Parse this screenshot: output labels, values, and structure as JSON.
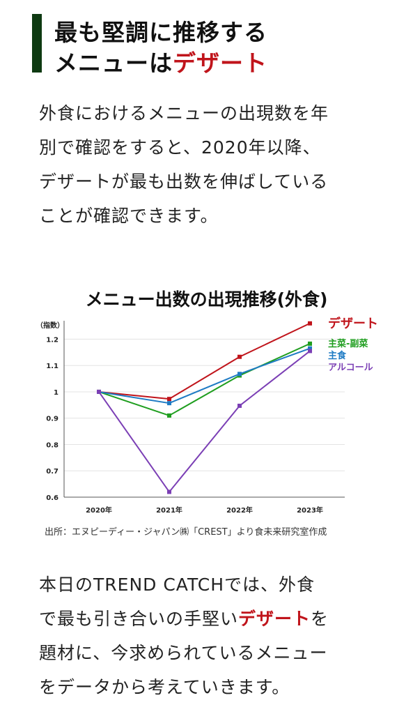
{
  "heading": {
    "line1": "最も堅調に推移する",
    "line2_prefix": "メニューは",
    "line2_highlight": "デザート"
  },
  "intro": {
    "lines": [
      "外食におけるメニューの出現数を年",
      "別で確認をすると、2020年以降、",
      "デザートが最も出数を伸ばしている",
      "ことが確認できます。"
    ]
  },
  "chart_data": {
    "type": "line",
    "title": "メニュー出数の出現推移(外食)",
    "ylabel": "（指数）",
    "categories": [
      "2020年",
      "2021年",
      "2022年",
      "2023年"
    ],
    "yticks": [
      "1.2",
      "1.1",
      "1",
      "0.9",
      "0.8",
      "0.7",
      "0.6"
    ],
    "ytick_values": [
      1.2,
      1.1,
      1.0,
      0.9,
      0.8,
      0.7,
      0.6
    ],
    "ylim": [
      0.6,
      1.27
    ],
    "grid": true,
    "legend_placement": "right",
    "series": [
      {
        "name": "デザート",
        "color": "#c0141b",
        "values": [
          1.0,
          0.973,
          1.133,
          1.26
        ]
      },
      {
        "name": "主菜-副菜",
        "color": "#1f9e1f",
        "values": [
          1.0,
          0.91,
          1.062,
          1.183
        ]
      },
      {
        "name": "主食",
        "color": "#1e7bc4",
        "values": [
          1.0,
          0.957,
          1.068,
          1.165
        ]
      },
      {
        "name": "アルコール",
        "color": "#7b3fb5",
        "values": [
          1.0,
          0.62,
          0.947,
          1.155
        ]
      }
    ]
  },
  "source": "出所：エヌピーディー・ジャパン㈱「CREST」より食未来研究室作成",
  "outro": {
    "line1": "本日のTREND CATCHでは、外食",
    "line2_prefix": "で最も引き合いの手堅い",
    "line2_highlight": "デザート",
    "line2_suffix": "を",
    "line3": "題材に、今求められているメニュー",
    "line4": "をデータから考えていきます。"
  }
}
